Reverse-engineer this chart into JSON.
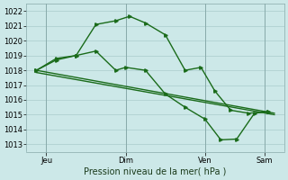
{
  "bg_color": "#cce8e8",
  "grid_color": "#aacccc",
  "line_color": "#1a6b1a",
  "title": "Pression niveau de la mer( hPa )",
  "ylim": [
    1012.5,
    1022.5
  ],
  "yticks": [
    1013,
    1014,
    1015,
    1016,
    1017,
    1018,
    1019,
    1020,
    1021,
    1022
  ],
  "xtick_labels": [
    "Jeu",
    "Dim",
    "Ven",
    "Sam"
  ],
  "xtick_positions": [
    1,
    5,
    9,
    12
  ],
  "xlim": [
    0,
    13
  ],
  "line1_x": [
    0.5,
    1.5,
    2.5,
    3.5,
    4.5,
    5.2,
    6.0,
    7.0,
    8.0,
    8.8,
    9.5,
    10.3,
    11.2,
    12.2
  ],
  "line1_y": [
    1018.0,
    1018.7,
    1019.0,
    1021.1,
    1021.35,
    1021.65,
    1021.2,
    1020.4,
    1018.0,
    1018.2,
    1016.6,
    1015.3,
    1015.1,
    1015.2
  ],
  "line2_x": [
    0.5,
    1.5,
    2.5,
    3.5,
    4.5,
    5.0,
    6.0,
    7.0,
    8.0,
    9.0,
    9.8,
    10.6,
    11.5,
    12.2
  ],
  "line2_y": [
    1018.0,
    1018.8,
    1019.0,
    1019.3,
    1018.0,
    1018.2,
    1018.0,
    1016.4,
    1015.5,
    1014.7,
    1013.3,
    1013.35,
    1015.1,
    1015.2
  ],
  "line3_x": [
    0.5,
    12.5
  ],
  "line3_y": [
    1018.0,
    1015.1
  ],
  "line4_x": [
    0.5,
    12.5
  ],
  "line4_y": [
    1017.85,
    1015.0
  ],
  "marker_size": 2.5,
  "linewidth": 1.0,
  "straight_linewidth": 1.0
}
